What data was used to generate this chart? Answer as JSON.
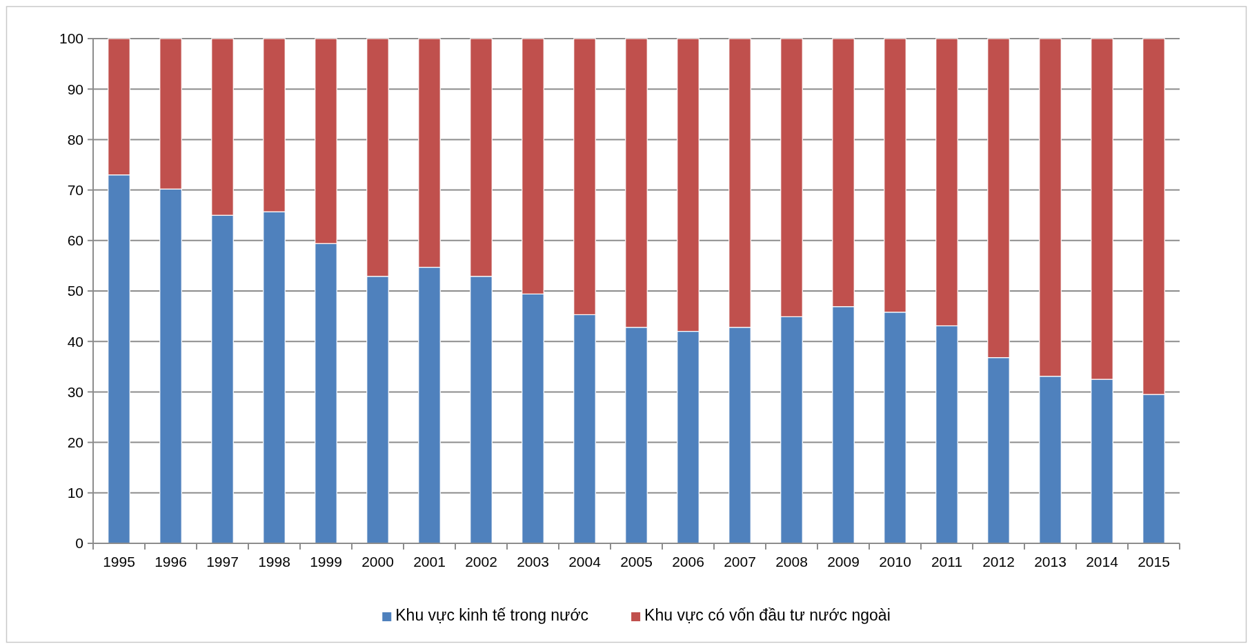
{
  "chart_data": {
    "type": "bar",
    "stacked": true,
    "categories": [
      "1995",
      "1996",
      "1997",
      "1998",
      "1999",
      "2000",
      "2001",
      "2002",
      "2003",
      "2004",
      "2005",
      "2006",
      "2007",
      "2008",
      "2009",
      "2010",
      "2011",
      "2012",
      "2013",
      "2014",
      "2015"
    ],
    "series": [
      {
        "name": "Khu vực kinh tế trong nước",
        "color": "#4f81bd",
        "values": [
          73.0,
          70.2,
          65.0,
          65.7,
          59.4,
          52.9,
          54.7,
          52.9,
          49.4,
          45.3,
          42.8,
          42.0,
          42.8,
          44.9,
          46.9,
          45.8,
          43.1,
          36.8,
          33.1,
          32.5,
          29.5
        ]
      },
      {
        "name": "Khu vực có vốn đầu tư nước ngoài",
        "color": "#c0504d",
        "values": [
          27.0,
          29.8,
          35.0,
          34.3,
          40.6,
          47.1,
          45.3,
          47.1,
          50.6,
          54.7,
          57.2,
          58.0,
          57.2,
          55.1,
          53.1,
          54.2,
          56.9,
          63.2,
          66.9,
          67.5,
          70.5
        ]
      }
    ],
    "ylim": [
      0,
      100
    ],
    "yticks": [
      0,
      10,
      20,
      30,
      40,
      50,
      60,
      70,
      80,
      90,
      100
    ],
    "grid": "y",
    "legend": "bottom"
  }
}
